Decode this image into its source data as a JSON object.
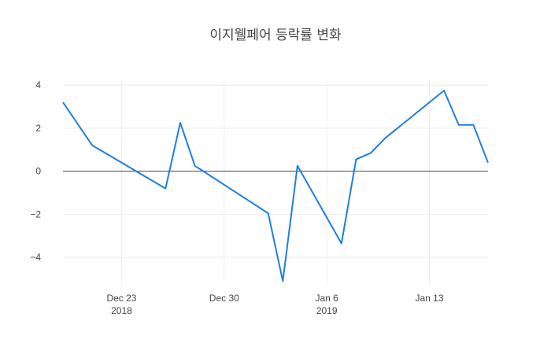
{
  "chart_data": {
    "type": "line",
    "title": "이지웰페어 등락률 변화",
    "xlabel": "",
    "ylabel": "",
    "x_range": [
      "2018-12-19",
      "2019-01-17"
    ],
    "ylim": [
      -5.2,
      4.3
    ],
    "grid": true,
    "zero_line": true,
    "line_color": "#1f7ee0",
    "y_ticks": [
      4,
      2,
      0,
      -2,
      -4
    ],
    "y_tick_labels": [
      "4",
      "2",
      "0",
      "−2",
      "−4"
    ],
    "x_ticks": [
      {
        "date": "2018-12-23",
        "label": "Dec 23",
        "sublabel": "2018"
      },
      {
        "date": "2018-12-30",
        "label": "Dec 30",
        "sublabel": ""
      },
      {
        "date": "2019-01-06",
        "label": "Jan 6",
        "sublabel": "2019"
      },
      {
        "date": "2019-01-13",
        "label": "Jan 13",
        "sublabel": ""
      }
    ],
    "series": [
      {
        "x": [
          "2018-12-19",
          "2018-12-21",
          "2018-12-26",
          "2018-12-27",
          "2018-12-28",
          "2019-01-02",
          "2019-01-03",
          "2019-01-04",
          "2019-01-07",
          "2019-01-08",
          "2019-01-09",
          "2019-01-10",
          "2019-01-14",
          "2019-01-15",
          "2019-01-16",
          "2019-01-17"
        ],
        "y": [
          3.2,
          1.2,
          -0.8,
          2.25,
          0.25,
          -1.95,
          -5.1,
          0.25,
          -3.35,
          0.55,
          0.85,
          1.55,
          3.75,
          2.15,
          2.15,
          0.4
        ]
      }
    ]
  }
}
